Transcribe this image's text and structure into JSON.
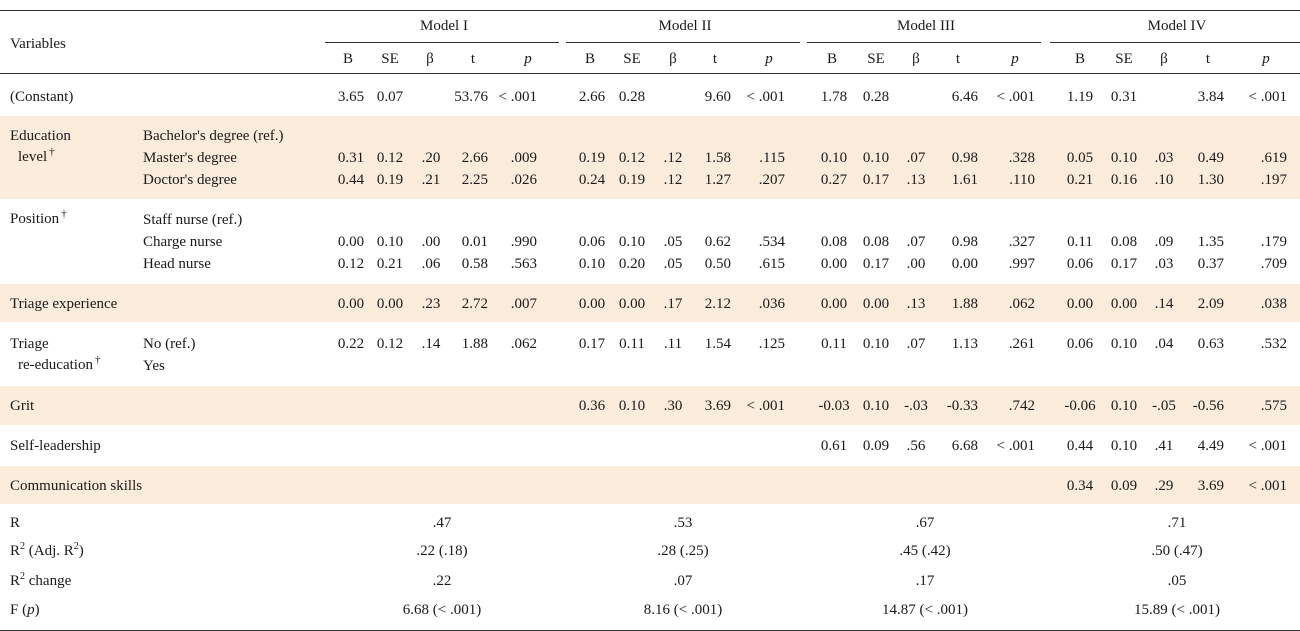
{
  "header": {
    "variables": "Variables",
    "models": [
      "Model I",
      "Model II",
      "Model III",
      "Model IV"
    ],
    "columns": [
      "B",
      "SE",
      "β",
      "t",
      "p"
    ]
  },
  "rows": [
    {
      "label": "(Constant)",
      "vals": [
        [
          "3.65",
          "0.07",
          "",
          "53.76",
          "< .001"
        ],
        [
          "2.66",
          "0.28",
          "",
          "9.60",
          "< .001"
        ],
        [
          "1.78",
          "0.28",
          "",
          "6.46",
          "< .001"
        ],
        [
          "1.19",
          "0.31",
          "",
          "3.84",
          "< .001"
        ]
      ]
    },
    {
      "label": "Education",
      "label2": "level",
      "dagger": "†",
      "subs": [
        "Bachelor's degree (ref.)",
        "Master's degree",
        "Doctor's degree"
      ],
      "vals_master": [
        [
          "0.31",
          "0.12",
          ".20",
          "2.66",
          ".009"
        ],
        [
          "0.19",
          "0.12",
          ".12",
          "1.58",
          ".115"
        ],
        [
          "0.10",
          "0.10",
          ".07",
          "0.98",
          ".328"
        ],
        [
          "0.05",
          "0.10",
          ".03",
          "0.49",
          ".619"
        ]
      ],
      "vals_doctor": [
        [
          "0.44",
          "0.19",
          ".21",
          "2.25",
          ".026"
        ],
        [
          "0.24",
          "0.19",
          ".12",
          "1.27",
          ".207"
        ],
        [
          "0.27",
          "0.17",
          ".13",
          "1.61",
          ".110"
        ],
        [
          "0.21",
          "0.16",
          ".10",
          "1.30",
          ".197"
        ]
      ]
    },
    {
      "label": "Position",
      "dagger": "†",
      "subs": [
        "Staff nurse (ref.)",
        "Charge nurse",
        "Head nurse"
      ],
      "vals_charge": [
        [
          "0.00",
          "0.10",
          ".00",
          "0.01",
          ".990"
        ],
        [
          "0.06",
          "0.10",
          ".05",
          "0.62",
          ".534"
        ],
        [
          "0.08",
          "0.08",
          ".07",
          "0.98",
          ".327"
        ],
        [
          "0.11",
          "0.08",
          ".09",
          "1.35",
          ".179"
        ]
      ],
      "vals_head": [
        [
          "0.12",
          "0.21",
          ".06",
          "0.58",
          ".563"
        ],
        [
          "0.10",
          "0.20",
          ".05",
          "0.50",
          ".615"
        ],
        [
          "0.00",
          "0.17",
          ".00",
          "0.00",
          ".997"
        ],
        [
          "0.06",
          "0.17",
          ".03",
          "0.37",
          ".709"
        ]
      ]
    },
    {
      "label": "Triage experience",
      "vals": [
        [
          "0.00",
          "0.00",
          ".23",
          "2.72",
          ".007"
        ],
        [
          "0.00",
          "0.00",
          ".17",
          "2.12",
          ".036"
        ],
        [
          "0.00",
          "0.00",
          ".13",
          "1.88",
          ".062"
        ],
        [
          "0.00",
          "0.00",
          ".14",
          "2.09",
          ".038"
        ]
      ]
    },
    {
      "label": "Triage",
      "label2": "re-education",
      "dagger": "†",
      "subs": [
        "No (ref.)",
        "Yes"
      ],
      "vals": [
        [
          "0.22",
          "0.12",
          ".14",
          "1.88",
          ".062"
        ],
        [
          "0.17",
          "0.11",
          ".11",
          "1.54",
          ".125"
        ],
        [
          "0.11",
          "0.10",
          ".07",
          "1.13",
          ".261"
        ],
        [
          "0.06",
          "0.10",
          ".04",
          "0.63",
          ".532"
        ]
      ]
    },
    {
      "label": "Grit",
      "vals": [
        null,
        [
          "0.36",
          "0.10",
          ".30",
          "3.69",
          "< .001"
        ],
        [
          "-0.03",
          "0.10",
          "-.03",
          "-0.33",
          ".742"
        ],
        [
          "-0.06",
          "0.10",
          "-.05",
          "-0.56",
          ".575"
        ]
      ]
    },
    {
      "label": "Self-leadership",
      "vals": [
        null,
        null,
        [
          "0.61",
          "0.09",
          ".56",
          "6.68",
          "< .001"
        ],
        [
          "0.44",
          "0.10",
          ".41",
          "4.49",
          "< .001"
        ]
      ]
    },
    {
      "label": "Communication skills",
      "vals": [
        null,
        null,
        null,
        [
          "0.34",
          "0.09",
          ".29",
          "3.69",
          "< .001"
        ]
      ]
    }
  ],
  "summary": [
    {
      "label": "R",
      "values": [
        ".47",
        ".53",
        ".67",
        ".71"
      ]
    },
    {
      "label_main": "R",
      "label_sup": "2",
      "label_mid": " (Adj. R",
      "label_sup2": "2",
      "label_end": ")",
      "values": [
        ".22 (.18)",
        ".28 (.25)",
        ".45 (.42)",
        ".50 (.47)"
      ]
    },
    {
      "label_main": "R",
      "label_sup": "2",
      "label_end": " change",
      "values": [
        ".22",
        ".07",
        ".17",
        ".05"
      ]
    },
    {
      "label_main": "F (",
      "label_italic": "p",
      "label_end": ")",
      "values": [
        "6.68 (< .001)",
        "8.16 (< .001)",
        "14.87 (< .001)",
        "15.89 (< .001)"
      ]
    }
  ]
}
